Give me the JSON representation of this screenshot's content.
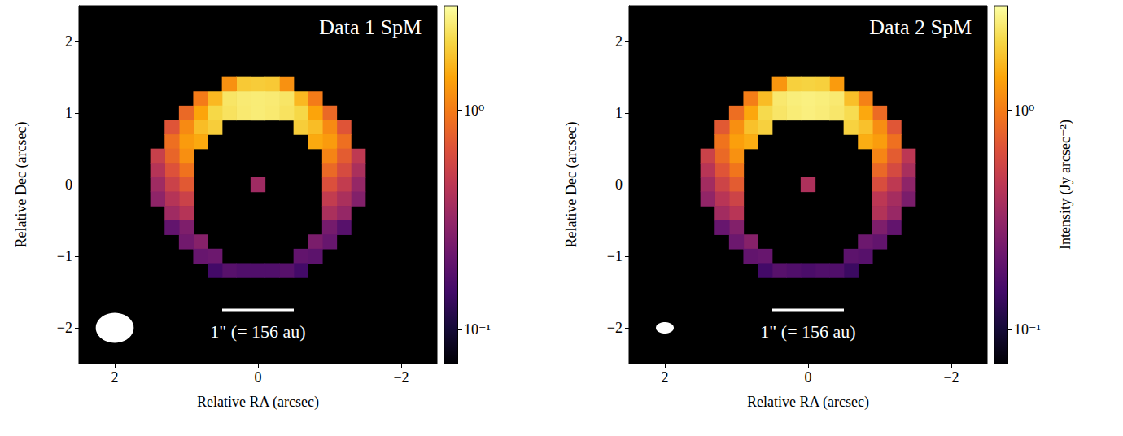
{
  "chart_data": [
    {
      "type": "image",
      "title": "Data 1 SpM",
      "x_label": "Relative RA (arcsec)",
      "y_label": "Relative Dec (arcsec)",
      "xlim": [
        2.5,
        -2.5
      ],
      "ylim": [
        -2.5,
        2.5
      ],
      "xticks": [
        2,
        0,
        {
          "value": -2,
          "label": "−2"
        }
      ],
      "yticks": [
        {
          "value": -2,
          "label": "−2"
        },
        {
          "value": -1,
          "label": "−1"
        },
        0,
        1,
        2
      ],
      "cells": [
        [
          -0.4,
          1.4,
          1.2
        ],
        [
          -0.2,
          1.4,
          1.85
        ],
        [
          0,
          1.4,
          1.9
        ],
        [
          0.2,
          1.4,
          1.85
        ],
        [
          0.4,
          1.4,
          1.2
        ],
        [
          -0.8,
          1.2,
          1.0
        ],
        [
          -0.6,
          1.2,
          1.63
        ],
        [
          -0.4,
          1.2,
          2.34
        ],
        [
          -0.2,
          1.2,
          2.47
        ],
        [
          0,
          1.2,
          2.5
        ],
        [
          0.2,
          1.2,
          2.47
        ],
        [
          0.4,
          1.2,
          2.34
        ],
        [
          0.6,
          1.2,
          1.63
        ],
        [
          0.8,
          1.2,
          1.0
        ],
        [
          -1.0,
          1.0,
          0.84
        ],
        [
          -0.8,
          1.0,
          1.4
        ],
        [
          -0.6,
          1.0,
          2.07
        ],
        [
          -0.4,
          1.0,
          2.28
        ],
        [
          -0.2,
          1.0,
          2.44
        ],
        [
          0,
          1.0,
          2.5
        ],
        [
          0.2,
          1.0,
          2.44
        ],
        [
          0.4,
          1.0,
          2.28
        ],
        [
          0.6,
          1.0,
          2.07
        ],
        [
          0.8,
          1.0,
          1.4
        ],
        [
          1.0,
          1.0,
          0.84
        ],
        [
          -1.2,
          0.8,
          0.69
        ],
        [
          -1.0,
          0.8,
          1.13
        ],
        [
          -0.8,
          0.8,
          1.69
        ],
        [
          -0.6,
          0.8,
          1.91
        ],
        [
          0.6,
          0.8,
          1.91
        ],
        [
          0.8,
          0.8,
          1.69
        ],
        [
          1.0,
          0.8,
          1.13
        ],
        [
          1.2,
          0.8,
          0.69
        ],
        [
          -1.2,
          0.6,
          0.89
        ],
        [
          -1.0,
          0.6,
          1.3
        ],
        [
          -0.8,
          0.6,
          1.46
        ],
        [
          0.8,
          0.6,
          1.46
        ],
        [
          1.0,
          0.6,
          1.3
        ],
        [
          1.2,
          0.6,
          0.89
        ],
        [
          -1.4,
          0.4,
          0.47
        ],
        [
          -1.2,
          0.4,
          0.74
        ],
        [
          -1.0,
          0.4,
          1.07
        ],
        [
          1.0,
          0.4,
          1.18
        ],
        [
          1.2,
          0.4,
          0.81
        ],
        [
          1.4,
          0.4,
          0.52
        ],
        [
          -1.4,
          0.2,
          0.39
        ],
        [
          -1.2,
          0.2,
          0.61
        ],
        [
          -1.0,
          0.2,
          0.84
        ],
        [
          1.0,
          0.2,
          0.92
        ],
        [
          1.2,
          0.2,
          0.67
        ],
        [
          1.4,
          0.2,
          0.43
        ],
        [
          -1.4,
          0,
          0.32
        ],
        [
          -1.2,
          0,
          0.49
        ],
        [
          -1.0,
          0,
          0.65
        ],
        [
          0,
          0,
          0.35
        ],
        [
          1.0,
          0,
          0.72
        ],
        [
          1.2,
          0,
          0.54
        ],
        [
          1.4,
          0,
          0.35
        ],
        [
          -1.4,
          -0.2,
          0.27
        ],
        [
          -1.2,
          -0.2,
          0.39
        ],
        [
          -1.0,
          -0.2,
          0.49
        ],
        [
          1.0,
          -0.2,
          0.54
        ],
        [
          1.2,
          -0.2,
          0.43
        ],
        [
          1.4,
          -0.2,
          0.3
        ],
        [
          -1.2,
          -0.4,
          0.32
        ],
        [
          -1.0,
          -0.4,
          0.39
        ],
        [
          1.0,
          -0.4,
          0.43
        ],
        [
          1.2,
          -0.4,
          0.35
        ],
        [
          -1.2,
          -0.6,
          0.18
        ],
        [
          -1.0,
          -0.6,
          0.24
        ],
        [
          1.0,
          -0.6,
          0.26
        ],
        [
          1.2,
          -0.6,
          0.2
        ],
        [
          -1.0,
          -0.8,
          0.21
        ],
        [
          -0.8,
          -0.8,
          0.25
        ],
        [
          0.8,
          -0.8,
          0.28
        ],
        [
          1.0,
          -0.8,
          0.23
        ],
        [
          -0.8,
          -1.0,
          0.19
        ],
        [
          -0.6,
          -1.0,
          0.2
        ],
        [
          0.6,
          -1.0,
          0.22
        ],
        [
          0.8,
          -1.0,
          0.21
        ],
        [
          -0.6,
          -1.2,
          0.15
        ],
        [
          -0.4,
          -1.2,
          0.18
        ],
        [
          -0.2,
          -1.2,
          0.17
        ],
        [
          0,
          -1.2,
          0.17
        ],
        [
          0.2,
          -1.2,
          0.17
        ],
        [
          0.4,
          -1.2,
          0.18
        ],
        [
          0.6,
          -1.2,
          0.15
        ]
      ],
      "colorbar": {
        "range": [
          0.07,
          3.0
        ],
        "log": true,
        "ticks": [
          {
            "value": 0.1,
            "label": "10⁻¹"
          },
          {
            "value": 1,
            "label": "10⁰"
          }
        ]
      },
      "beam": {
        "ra": 2,
        "dec": -2,
        "major": 0.53,
        "minor": 0.42
      },
      "scalebar": {
        "length": 1,
        "label": "1\" (= 156 au)"
      }
    },
    {
      "type": "image",
      "title": "Data 2 SpM",
      "x_label": "Relative RA (arcsec)",
      "y_label": "Relative Dec (arcsec)",
      "xlim": [
        2.5,
        -2.5
      ],
      "ylim": [
        -2.5,
        2.5
      ],
      "xticks": [
        2,
        0,
        {
          "value": -2,
          "label": "−2"
        }
      ],
      "yticks": [
        {
          "value": -2,
          "label": "−2"
        },
        {
          "value": -1,
          "label": "−1"
        },
        0,
        1,
        2
      ],
      "cells": [
        [
          -0.4,
          1.4,
          1.3
        ],
        [
          -0.2,
          1.4,
          1.95
        ],
        [
          0,
          1.4,
          2.0
        ],
        [
          0.2,
          1.4,
          1.95
        ],
        [
          0.4,
          1.4,
          1.25
        ],
        [
          -0.8,
          1.2,
          1.05
        ],
        [
          -0.6,
          1.2,
          1.72
        ],
        [
          -0.4,
          1.2,
          2.45
        ],
        [
          -0.2,
          1.2,
          2.55
        ],
        [
          0,
          1.2,
          2.6
        ],
        [
          0.2,
          1.2,
          2.55
        ],
        [
          0.4,
          1.2,
          2.42
        ],
        [
          0.6,
          1.2,
          1.68
        ],
        [
          0.8,
          1.2,
          1.02
        ],
        [
          -1.0,
          1.0,
          0.86
        ],
        [
          -0.8,
          1.0,
          1.45
        ],
        [
          -0.6,
          1.0,
          2.15
        ],
        [
          -0.4,
          1.0,
          2.38
        ],
        [
          -0.2,
          1.0,
          2.52
        ],
        [
          0,
          1.0,
          2.58
        ],
        [
          0.2,
          1.0,
          2.5
        ],
        [
          0.4,
          1.0,
          2.35
        ],
        [
          0.6,
          1.0,
          2.12
        ],
        [
          0.8,
          1.0,
          1.44
        ],
        [
          1.0,
          1.0,
          0.88
        ],
        [
          -1.2,
          0.8,
          0.7
        ],
        [
          -1.0,
          0.8,
          1.17
        ],
        [
          -0.8,
          0.8,
          1.75
        ],
        [
          -0.6,
          0.8,
          1.98
        ],
        [
          0.6,
          0.8,
          1.96
        ],
        [
          0.8,
          0.8,
          1.74
        ],
        [
          1.0,
          0.8,
          1.18
        ],
        [
          1.2,
          0.8,
          0.72
        ],
        [
          -1.2,
          0.6,
          0.9
        ],
        [
          -1.0,
          0.6,
          1.32
        ],
        [
          -0.8,
          0.6,
          1.5
        ],
        [
          0.8,
          0.6,
          1.5
        ],
        [
          1.0,
          0.6,
          1.35
        ],
        [
          1.2,
          0.6,
          0.93
        ],
        [
          -1.4,
          0.4,
          0.46
        ],
        [
          -1.2,
          0.4,
          0.74
        ],
        [
          -1.0,
          0.4,
          1.08
        ],
        [
          1.0,
          0.4,
          1.2
        ],
        [
          1.2,
          0.4,
          0.84
        ],
        [
          1.4,
          0.4,
          0.54
        ],
        [
          -1.4,
          0.2,
          0.38
        ],
        [
          -1.2,
          0.2,
          0.6
        ],
        [
          -1.0,
          0.2,
          0.83
        ],
        [
          1.0,
          0.2,
          0.94
        ],
        [
          1.2,
          0.2,
          0.69
        ],
        [
          1.4,
          0.2,
          0.44
        ],
        [
          -1.4,
          0,
          0.3
        ],
        [
          -1.2,
          0,
          0.47
        ],
        [
          -1.0,
          0,
          0.63
        ],
        [
          0,
          0,
          0.4
        ],
        [
          1.0,
          0,
          0.74
        ],
        [
          1.2,
          0,
          0.55
        ],
        [
          1.4,
          0,
          0.36
        ],
        [
          -1.4,
          -0.2,
          0.25
        ],
        [
          -1.2,
          -0.2,
          0.37
        ],
        [
          -1.0,
          -0.2,
          0.46
        ],
        [
          1.0,
          -0.2,
          0.55
        ],
        [
          1.2,
          -0.2,
          0.44
        ],
        [
          1.4,
          -0.2,
          0.31
        ],
        [
          -1.2,
          -0.4,
          0.33
        ],
        [
          -1.0,
          -0.4,
          0.42
        ],
        [
          1.0,
          -0.4,
          0.44
        ],
        [
          1.2,
          -0.4,
          0.36
        ],
        [
          -1.2,
          -0.6,
          0.2
        ],
        [
          -1.0,
          -0.6,
          0.26
        ],
        [
          1.0,
          -0.6,
          0.27
        ],
        [
          1.2,
          -0.6,
          0.21
        ],
        [
          -1.0,
          -0.8,
          0.2
        ],
        [
          -0.8,
          -0.8,
          0.22
        ],
        [
          0.8,
          -0.8,
          0.28
        ],
        [
          1.0,
          -0.8,
          0.22
        ],
        [
          -0.8,
          -1.0,
          0.18
        ],
        [
          -0.6,
          -1.0,
          0.19
        ],
        [
          0.6,
          -1.0,
          0.21
        ],
        [
          0.8,
          -1.0,
          0.2
        ],
        [
          -0.6,
          -1.2,
          0.14
        ],
        [
          -0.4,
          -1.2,
          0.17
        ],
        [
          -0.2,
          -1.2,
          0.17
        ],
        [
          0,
          -1.2,
          0.16
        ],
        [
          0.2,
          -1.2,
          0.17
        ],
        [
          0.4,
          -1.2,
          0.18
        ],
        [
          0.6,
          -1.2,
          0.15
        ]
      ],
      "colorbar": {
        "range": [
          0.07,
          3.0
        ],
        "log": true,
        "label": "Intensity (Jy arcsec⁻²)",
        "ticks": [
          {
            "value": 0.1,
            "label": "10⁻¹"
          },
          {
            "value": 1,
            "label": "10⁰"
          }
        ]
      },
      "beam": {
        "ra": 2,
        "dec": -2,
        "major": 0.25,
        "minor": 0.16
      },
      "scalebar": {
        "length": 1,
        "label": "1\" (= 156 au)"
      }
    }
  ]
}
